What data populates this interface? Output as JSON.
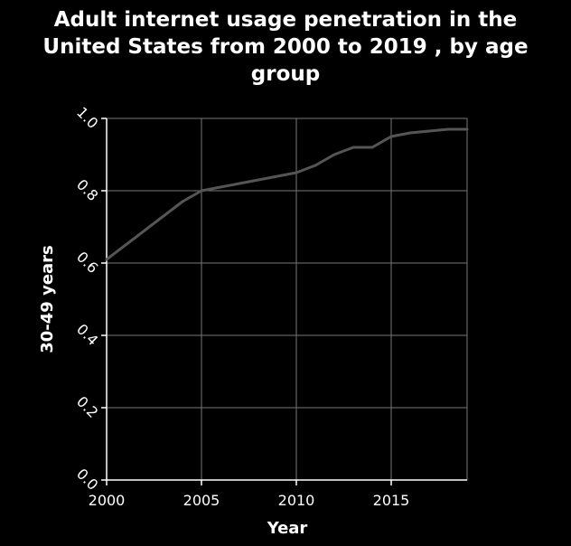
{
  "chart_data": {
    "type": "line",
    "title_lines": [
      "Adult internet usage penetration in the",
      "United States from 2000 to 2019 , by age",
      "group"
    ],
    "xlabel": "Year",
    "ylabel": "30-49 years",
    "xlim": [
      2000,
      2019
    ],
    "ylim": [
      0.0,
      1.0
    ],
    "x_ticks": [
      2000,
      2005,
      2010,
      2015
    ],
    "x_tick_labels": [
      "2000",
      "2005",
      "2010",
      "2015"
    ],
    "y_ticks": [
      0.0,
      0.2,
      0.4,
      0.6,
      0.8,
      1.0
    ],
    "y_tick_labels": [
      "0.0",
      "0.2",
      "0.4",
      "0.6",
      "0.8",
      "1.0"
    ],
    "grid": true,
    "colors": {
      "background": "#000000",
      "line": "#555555",
      "grid": "#777777",
      "text": "#ffffff"
    },
    "series": [
      {
        "x": [
          2000,
          2001,
          2002,
          2003,
          2004,
          2005,
          2006,
          2007,
          2008,
          2009,
          2010,
          2011,
          2012,
          2013,
          2014,
          2015,
          2016,
          2017,
          2018,
          2019
        ],
        "values": [
          0.61,
          0.65,
          0.69,
          0.73,
          0.77,
          0.8,
          0.81,
          0.82,
          0.83,
          0.84,
          0.85,
          0.87,
          0.9,
          0.92,
          0.92,
          0.95,
          0.96,
          0.965,
          0.97,
          0.97
        ]
      }
    ]
  }
}
